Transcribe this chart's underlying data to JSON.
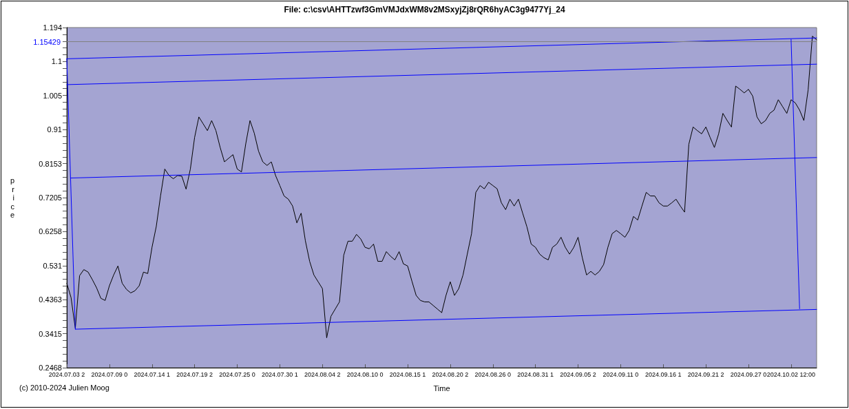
{
  "chart_data": {
    "type": "line",
    "title": "File: c:\\csv\\AHTTzwf3GmVMJdxWM8v2MSxyjZj8rQR6hyAC3g9477Yj_24",
    "xlabel": "Time",
    "ylabel": "price",
    "annotations": [
      "(c) 2010-2024 Julien Moog"
    ],
    "categories": [
      "2024.07.03 2",
      null,
      null,
      null,
      null,
      null,
      null,
      null,
      null,
      null,
      "2024.07.09 0",
      null,
      null,
      null,
      null,
      null,
      null,
      null,
      null,
      null,
      "2024.07.14 1",
      null,
      null,
      null,
      null,
      null,
      null,
      null,
      null,
      null,
      "2024.07.19 2",
      null,
      null,
      null,
      null,
      null,
      null,
      null,
      null,
      null,
      "2024.07.25 0",
      null,
      null,
      null,
      null,
      null,
      null,
      null,
      null,
      null,
      "2024.07.30 1",
      null,
      null,
      null,
      null,
      null,
      null,
      null,
      null,
      null,
      "2024.08.04 2",
      null,
      null,
      null,
      null,
      null,
      null,
      null,
      null,
      null,
      "2024.08.10 0",
      null,
      null,
      null,
      null,
      null,
      null,
      null,
      null,
      null,
      "2024.08.15 1",
      null,
      null,
      null,
      null,
      null,
      null,
      null,
      null,
      null,
      "2024.08.20 2",
      null,
      null,
      null,
      null,
      null,
      null,
      null,
      null,
      null,
      "2024.08.26 0",
      null,
      null,
      null,
      null,
      null,
      null,
      null,
      null,
      null,
      "2024.08.31 1",
      null,
      null,
      null,
      null,
      null,
      null,
      null,
      null,
      null,
      "2024.09.05 2",
      null,
      null,
      null,
      null,
      null,
      null,
      null,
      null,
      null,
      "2024.09.11 0",
      null,
      null,
      null,
      null,
      null,
      null,
      null,
      null,
      null,
      "2024.09.16 1",
      null,
      null,
      null,
      null,
      null,
      null,
      null,
      null,
      null,
      "2024.09.21 2",
      null,
      null,
      null,
      null,
      null,
      null,
      null,
      null,
      null,
      "2024.09.27 0",
      null,
      null,
      null,
      null,
      null,
      null,
      null,
      null,
      null,
      "2024.10.02 12:00",
      null,
      null,
      null,
      null,
      null,
      null
    ],
    "series": [
      {
        "color": "#000000",
        "values": [
          0.482,
          0.442,
          0.356,
          0.503,
          0.52,
          0.513,
          0.492,
          0.469,
          0.44,
          0.434,
          0.475,
          0.505,
          0.53,
          0.482,
          0.465,
          0.455,
          0.461,
          0.475,
          0.513,
          0.509,
          0.582,
          0.64,
          0.725,
          0.8,
          0.782,
          0.773,
          0.782,
          0.78,
          0.744,
          0.8,
          0.888,
          0.945,
          0.926,
          0.907,
          0.935,
          0.907,
          0.86,
          0.82,
          0.83,
          0.84,
          0.8,
          0.792,
          0.87,
          0.935,
          0.9,
          0.85,
          0.82,
          0.81,
          0.82,
          0.782,
          0.754,
          0.725,
          0.716,
          0.697,
          0.65,
          0.677,
          0.6,
          0.543,
          0.505,
          0.486,
          0.467,
          0.33,
          0.39,
          0.41,
          0.43,
          0.56,
          0.599,
          0.599,
          0.618,
          0.605,
          0.582,
          0.578,
          0.591,
          0.543,
          0.543,
          0.57,
          0.557,
          0.547,
          0.57,
          0.536,
          0.53,
          0.488,
          0.448,
          0.434,
          0.43,
          0.43,
          0.42,
          0.41,
          0.4,
          0.448,
          0.486,
          0.448,
          0.467,
          0.505,
          0.563,
          0.62,
          0.735,
          0.754,
          0.745,
          0.763,
          0.754,
          0.745,
          0.706,
          0.687,
          0.716,
          0.697,
          0.716,
          0.677,
          0.639,
          0.591,
          0.582,
          0.563,
          0.553,
          0.547,
          0.582,
          0.591,
          0.61,
          0.582,
          0.563,
          0.582,
          0.61,
          0.553,
          0.505,
          0.515,
          0.505,
          0.515,
          0.534,
          0.582,
          0.62,
          0.629,
          0.62,
          0.61,
          0.629,
          0.668,
          0.658,
          0.697,
          0.735,
          0.725,
          0.725,
          0.706,
          0.697,
          0.697,
          0.706,
          0.716,
          0.697,
          0.68,
          0.869,
          0.917,
          0.907,
          0.898,
          0.917,
          0.888,
          0.86,
          0.898,
          0.955,
          0.935,
          0.917,
          1.031,
          1.022,
          1.012,
          1.022,
          1.003,
          0.945,
          0.926,
          0.935,
          0.955,
          0.964,
          0.993,
          0.974,
          0.955,
          0.993,
          0.984,
          0.964,
          0.935,
          1.02,
          1.17,
          1.16
        ]
      },
      {
        "color": "#0000ff",
        "values": [
          1.107,
          null,
          null,
          null,
          null,
          null,
          null,
          null,
          null,
          null,
          null,
          null,
          null,
          null,
          null,
          null,
          null,
          null,
          null,
          null,
          null,
          null,
          null,
          null,
          null,
          null,
          null,
          null,
          null,
          null,
          null,
          null,
          null,
          null,
          null,
          null,
          null,
          null,
          null,
          null,
          null,
          null,
          null,
          null,
          null,
          null,
          null,
          null,
          null,
          null,
          null,
          null,
          null,
          null,
          null,
          null,
          null,
          null,
          null,
          null,
          null,
          null,
          null,
          null,
          null,
          null,
          null,
          null,
          null,
          null,
          null,
          null,
          null,
          null,
          null,
          null,
          null,
          null,
          null,
          null,
          null,
          null,
          null,
          null,
          null,
          null,
          null,
          null,
          null,
          null,
          null,
          null,
          null,
          null,
          null,
          null,
          null,
          null,
          null,
          null,
          null,
          null,
          null,
          null,
          null,
          null,
          null,
          null,
          null,
          null,
          null,
          null,
          null,
          null,
          null,
          null,
          null,
          null,
          null,
          null,
          null,
          null,
          null,
          null,
          null,
          null,
          null,
          null,
          null,
          null,
          null,
          null,
          null,
          null,
          null,
          null,
          null,
          null,
          null,
          null,
          null,
          null,
          null,
          null,
          null,
          null,
          null,
          null,
          null,
          null,
          null,
          null,
          null,
          null,
          null,
          null,
          null,
          null,
          null,
          null,
          null,
          null,
          null,
          null,
          null,
          null,
          null,
          null,
          null,
          null,
          null,
          null,
          null,
          null,
          null,
          null,
          1.165
        ]
      },
      {
        "color": "#0000ff",
        "values": [
          1.035,
          null,
          null,
          null,
          null,
          null,
          null,
          null,
          null,
          null,
          null,
          null,
          null,
          null,
          null,
          null,
          null,
          null,
          null,
          null,
          null,
          null,
          null,
          null,
          null,
          null,
          null,
          null,
          null,
          null,
          null,
          null,
          null,
          null,
          null,
          null,
          null,
          null,
          null,
          null,
          null,
          null,
          null,
          null,
          null,
          null,
          null,
          null,
          null,
          null,
          null,
          null,
          null,
          null,
          null,
          null,
          null,
          null,
          null,
          null,
          null,
          null,
          null,
          null,
          null,
          null,
          null,
          null,
          null,
          null,
          null,
          null,
          null,
          null,
          null,
          null,
          null,
          null,
          null,
          null,
          null,
          null,
          null,
          null,
          null,
          null,
          null,
          null,
          null,
          null,
          null,
          null,
          null,
          null,
          null,
          null,
          null,
          null,
          null,
          null,
          null,
          null,
          null,
          null,
          null,
          null,
          null,
          null,
          null,
          null,
          null,
          null,
          null,
          null,
          null,
          null,
          null,
          null,
          null,
          null,
          null,
          null,
          null,
          null,
          null,
          null,
          null,
          null,
          null,
          null,
          null,
          null,
          null,
          null,
          null,
          null,
          null,
          null,
          null,
          null,
          null,
          null,
          null,
          null,
          null,
          null,
          null,
          null,
          null,
          null,
          null,
          null,
          null,
          null,
          null,
          null,
          null,
          null,
          null,
          null,
          null,
          null,
          null,
          null,
          null,
          null,
          null,
          null,
          null,
          null,
          null,
          null,
          null,
          null,
          null,
          null,
          1.092
        ]
      },
      {
        "color": "#0000ff",
        "values": [
          null,
          0.775,
          null,
          null,
          null,
          null,
          null,
          null,
          null,
          null,
          null,
          null,
          null,
          null,
          null,
          null,
          null,
          null,
          null,
          null,
          null,
          null,
          null,
          null,
          null,
          null,
          null,
          null,
          null,
          null,
          null,
          null,
          null,
          null,
          null,
          null,
          null,
          null,
          null,
          null,
          null,
          null,
          null,
          null,
          null,
          null,
          null,
          null,
          null,
          null,
          null,
          null,
          null,
          null,
          null,
          null,
          null,
          null,
          null,
          null,
          null,
          null,
          null,
          null,
          null,
          null,
          null,
          null,
          null,
          null,
          null,
          null,
          null,
          null,
          null,
          null,
          null,
          null,
          null,
          null,
          null,
          null,
          null,
          null,
          null,
          null,
          null,
          null,
          null,
          null,
          null,
          null,
          null,
          null,
          null,
          null,
          null,
          null,
          null,
          null,
          null,
          null,
          null,
          null,
          null,
          null,
          null,
          null,
          null,
          null,
          null,
          null,
          null,
          null,
          null,
          null,
          null,
          null,
          null,
          null,
          null,
          null,
          null,
          null,
          null,
          null,
          null,
          null,
          null,
          null,
          null,
          null,
          null,
          null,
          null,
          null,
          null,
          null,
          null,
          null,
          null,
          null,
          null,
          null,
          null,
          null,
          null,
          null,
          null,
          null,
          null,
          null,
          null,
          null,
          null,
          null,
          null,
          null,
          null,
          null,
          null,
          null,
          null,
          null,
          null,
          null,
          null,
          null,
          null,
          null,
          null,
          null,
          null,
          null,
          null,
          null,
          0.832
        ]
      },
      {
        "color": "#0000ff",
        "values": [
          null,
          null,
          0.354,
          null,
          null,
          null,
          null,
          null,
          null,
          null,
          null,
          null,
          null,
          null,
          null,
          null,
          null,
          null,
          null,
          null,
          null,
          null,
          null,
          null,
          null,
          null,
          null,
          null,
          null,
          null,
          null,
          null,
          null,
          null,
          null,
          null,
          null,
          null,
          null,
          null,
          null,
          null,
          null,
          null,
          null,
          null,
          null,
          null,
          null,
          null,
          null,
          null,
          null,
          null,
          null,
          null,
          null,
          null,
          null,
          null,
          null,
          null,
          null,
          null,
          null,
          null,
          null,
          null,
          null,
          null,
          null,
          null,
          null,
          null,
          null,
          null,
          null,
          null,
          null,
          null,
          null,
          null,
          null,
          null,
          null,
          null,
          null,
          null,
          null,
          null,
          null,
          null,
          null,
          null,
          null,
          null,
          null,
          null,
          null,
          null,
          null,
          null,
          null,
          null,
          null,
          null,
          null,
          null,
          null,
          null,
          null,
          null,
          null,
          null,
          null,
          null,
          null,
          null,
          null,
          null,
          null,
          null,
          null,
          null,
          null,
          null,
          null,
          null,
          null,
          null,
          null,
          null,
          null,
          null,
          null,
          null,
          null,
          null,
          null,
          null,
          null,
          null,
          null,
          null,
          null,
          null,
          null,
          null,
          null,
          null,
          null,
          null,
          null,
          null,
          null,
          null,
          null,
          null,
          null,
          null,
          null,
          null,
          null,
          null,
          null,
          null,
          null,
          null,
          null,
          null,
          null,
          null,
          null,
          null,
          null,
          null,
          0.409
        ]
      },
      {
        "color": "#0000ff",
        "values": [
          1.107,
          null,
          0.354,
          null,
          null,
          null,
          null,
          null,
          null,
          null,
          null,
          null,
          null,
          null,
          null,
          null,
          null,
          null,
          null,
          null,
          null,
          null,
          null,
          null,
          null,
          null,
          null,
          null,
          null,
          null,
          null,
          null,
          null,
          null,
          null,
          null,
          null,
          null,
          null,
          null,
          null,
          null,
          null,
          null,
          null,
          null,
          null,
          null,
          null,
          null,
          null,
          null,
          null,
          null,
          null,
          null,
          null,
          null,
          null,
          null,
          null,
          null,
          null,
          null,
          null,
          null,
          null,
          null,
          null,
          null,
          null,
          null,
          null,
          null,
          null,
          null,
          null,
          null,
          null,
          null,
          null,
          null,
          null,
          null,
          null,
          null,
          null,
          null,
          null,
          null,
          null,
          null,
          null,
          null,
          null,
          null,
          null,
          null,
          null,
          null,
          null,
          null,
          null,
          null,
          null,
          null,
          null,
          null,
          null,
          null,
          null,
          null,
          null,
          null,
          null,
          null,
          null,
          null,
          null,
          null,
          null,
          null,
          null,
          null,
          null,
          null,
          null,
          null,
          null,
          null,
          null,
          null,
          null,
          null,
          null,
          null,
          null,
          null,
          null,
          null,
          null,
          null,
          null,
          null,
          null,
          null,
          null,
          null,
          null,
          null,
          null,
          null,
          null,
          null,
          null,
          null,
          null,
          null,
          null,
          null,
          null,
          null,
          null,
          null,
          null,
          null,
          null,
          null,
          null,
          null,
          null,
          null,
          null,
          null,
          null,
          null,
          null
        ]
      },
      {
        "color": "#0000ff",
        "values": [
          null,
          null,
          null,
          null,
          null,
          null,
          null,
          null,
          null,
          null,
          null,
          null,
          null,
          null,
          null,
          null,
          null,
          null,
          null,
          null,
          null,
          null,
          null,
          null,
          null,
          null,
          null,
          null,
          null,
          null,
          null,
          null,
          null,
          null,
          null,
          null,
          null,
          null,
          null,
          null,
          null,
          null,
          null,
          null,
          null,
          null,
          null,
          null,
          null,
          null,
          null,
          null,
          null,
          null,
          null,
          null,
          null,
          null,
          null,
          null,
          null,
          null,
          null,
          null,
          null,
          null,
          null,
          null,
          null,
          null,
          null,
          null,
          null,
          null,
          null,
          null,
          null,
          null,
          null,
          null,
          null,
          null,
          null,
          null,
          null,
          null,
          null,
          null,
          null,
          null,
          null,
          null,
          null,
          null,
          null,
          null,
          null,
          null,
          null,
          null,
          null,
          null,
          null,
          null,
          null,
          null,
          null,
          null,
          null,
          null,
          null,
          null,
          null,
          null,
          null,
          null,
          null,
          null,
          null,
          null,
          null,
          null,
          null,
          null,
          null,
          null,
          null,
          null,
          null,
          null,
          null,
          null,
          null,
          null,
          null,
          null,
          null,
          null,
          null,
          null,
          null,
          null,
          null,
          null,
          null,
          null,
          null,
          null,
          null,
          null,
          null,
          null,
          null,
          null,
          null,
          null,
          null,
          null,
          null,
          null,
          null,
          null,
          null,
          null,
          null,
          null,
          null,
          null,
          null,
          null,
          1.161,
          null,
          0.411,
          null,
          null,
          null,
          null
        ]
      }
    ],
    "ylim": [
      0.2468,
      1.194
    ],
    "yticks": [
      0.2468,
      {
        "value": 0.266,
        "label": null
      },
      {
        "value": 0.285,
        "label": null
      },
      {
        "value": 0.304,
        "label": null
      },
      {
        "value": 0.323,
        "label": null
      },
      0.3415,
      {
        "value": 0.36,
        "label": null
      },
      {
        "value": 0.379,
        "label": null
      },
      {
        "value": 0.398,
        "label": null
      },
      {
        "value": 0.417,
        "label": null
      },
      0.4363,
      {
        "value": 0.455,
        "label": null
      },
      {
        "value": 0.474,
        "label": null
      },
      {
        "value": 0.493,
        "label": null
      },
      {
        "value": 0.512,
        "label": null
      },
      0.531,
      {
        "value": 0.55,
        "label": null
      },
      {
        "value": 0.569,
        "label": null
      },
      {
        "value": 0.588,
        "label": null
      },
      {
        "value": 0.607,
        "label": null
      },
      0.6258,
      {
        "value": 0.645,
        "label": null
      },
      {
        "value": 0.664,
        "label": null
      },
      {
        "value": 0.683,
        "label": null
      },
      {
        "value": 0.701,
        "label": null
      },
      0.7205,
      {
        "value": 0.739,
        "label": null
      },
      {
        "value": 0.758,
        "label": null
      },
      {
        "value": 0.777,
        "label": null
      },
      {
        "value": 0.796,
        "label": null
      },
      0.8153,
      {
        "value": 0.834,
        "label": null
      },
      {
        "value": 0.853,
        "label": null
      },
      {
        "value": 0.872,
        "label": null
      },
      {
        "value": 0.891,
        "label": null
      },
      0.91,
      {
        "value": 0.929,
        "label": null
      },
      {
        "value": 0.948,
        "label": null
      },
      {
        "value": 0.967,
        "label": null
      },
      {
        "value": 0.986,
        "label": null
      },
      1.005,
      {
        "value": 1.024,
        "label": null
      },
      {
        "value": 1.042,
        "label": null
      },
      {
        "value": 1.061,
        "label": null
      },
      {
        "value": 1.08,
        "label": null
      },
      1.1,
      {
        "value": 1.118,
        "label": null
      },
      {
        "value": 1.137,
        "label": null
      },
      {
        "value": 1.156,
        "label": null
      },
      {
        "value": 1.175,
        "label": null
      },
      1.194
    ],
    "ref_lines": [
      {
        "axis": "y",
        "value": 1.15429,
        "label": "1.15429",
        "color": "#808080"
      }
    ],
    "marker": "none",
    "line_style": "solid",
    "grid": false,
    "legend": false
  }
}
